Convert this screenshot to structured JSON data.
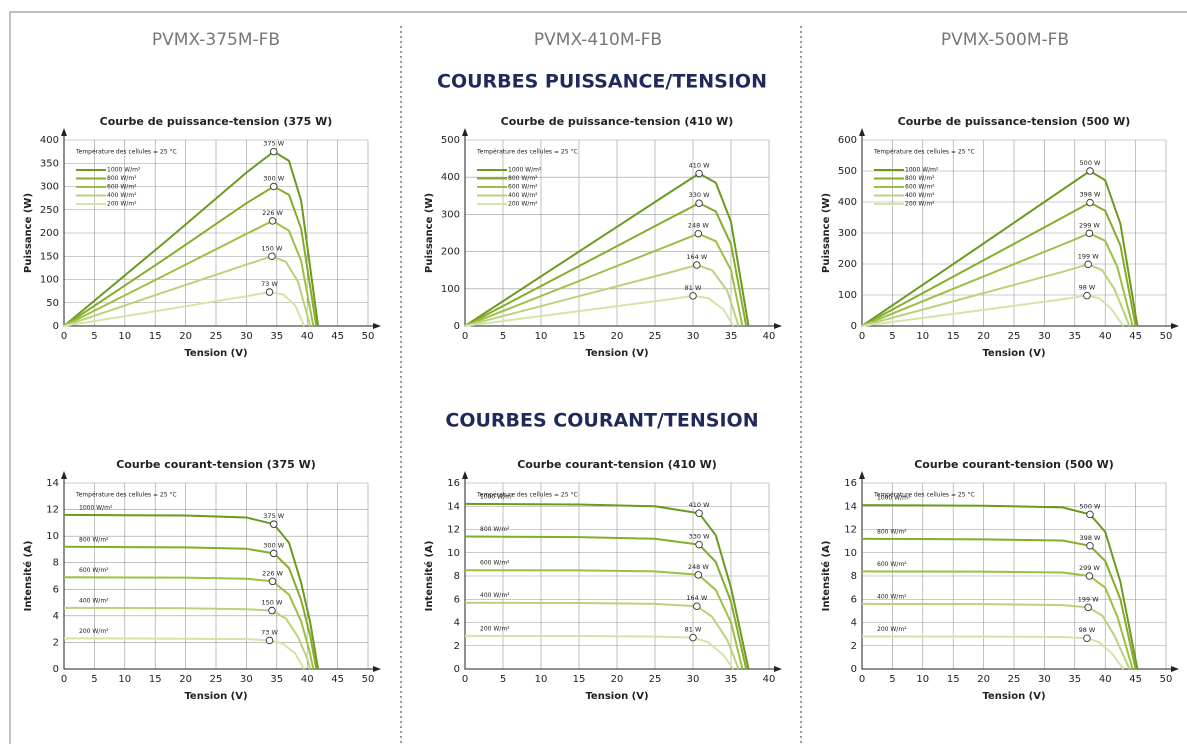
{
  "columns": [
    "PVMX-375M-FB",
    "PVMX-410M-FB",
    "PVMX-500M-FB"
  ],
  "sections": [
    "COURBES PUISSANCE/TENSION",
    "COURBES COURANT/TENSION"
  ],
  "chart_data": [
    {
      "type": "line",
      "title": "Courbe de puissance-tension (375 W)",
      "xlabel": "Tension (V)",
      "ylabel": "Puissance (W)",
      "annotation": "Température des cellules = 25 °C",
      "legend": "upper left",
      "grid": true,
      "xlim": [
        0,
        50
      ],
      "xticks": [
        0,
        5,
        10,
        15,
        20,
        25,
        30,
        35,
        40,
        45,
        50
      ],
      "ylim": [
        0,
        400
      ],
      "yticks": [
        0,
        50,
        100,
        150,
        200,
        250,
        300,
        350,
        400
      ],
      "series": [
        {
          "name": "1000 W/m²",
          "color": "#6a9a1f",
          "x": [
            0,
            17,
            30,
            34.5,
            37,
            39,
            41.8
          ],
          "values": [
            0,
            185,
            330,
            375,
            355,
            270,
            0
          ],
          "peak": {
            "x": 34.5,
            "y": 375,
            "label": "375 W"
          }
        },
        {
          "name": "800 W/m²",
          "color": "#84ad2a",
          "x": [
            0,
            17,
            30,
            34.5,
            37,
            39,
            41.5
          ],
          "values": [
            0,
            148,
            264,
            300,
            282,
            210,
            0
          ],
          "peak": {
            "x": 34.5,
            "y": 300,
            "label": "300 W"
          }
        },
        {
          "name": "600 W/m²",
          "color": "#9cc043",
          "x": [
            0,
            17,
            30,
            34.3,
            37,
            39,
            41
          ],
          "values": [
            0,
            112,
            198,
            226,
            205,
            140,
            0
          ],
          "peak": {
            "x": 34.3,
            "y": 226,
            "label": "226 W"
          }
        },
        {
          "name": "400 W/m²",
          "color": "#b9d37a",
          "x": [
            0,
            17,
            30,
            34.2,
            36.5,
            38.5,
            40.5
          ],
          "values": [
            0,
            75,
            132,
            150,
            138,
            95,
            0
          ],
          "peak": {
            "x": 34.2,
            "y": 150,
            "label": "150 W"
          }
        },
        {
          "name": "200 W/m²",
          "color": "#d4e4a8",
          "x": [
            0,
            17,
            30,
            33.8,
            36,
            38,
            39.5
          ],
          "values": [
            0,
            36,
            64,
            73,
            68,
            45,
            0
          ],
          "peak": {
            "x": 33.8,
            "y": 73,
            "label": "73 W"
          }
        }
      ]
    },
    {
      "type": "line",
      "title": "Courbe de puissance-tension (410 W)",
      "xlabel": "Tension (V)",
      "ylabel": "Puissance (W)",
      "annotation": "Température des cellules = 25 °C",
      "legend": "upper left",
      "grid": true,
      "xlim": [
        0,
        40
      ],
      "xticks": [
        0,
        5,
        10,
        15,
        20,
        25,
        30,
        35,
        40
      ],
      "ylim": [
        0,
        500
      ],
      "yticks": [
        0,
        100,
        200,
        300,
        400,
        500
      ],
      "series": [
        {
          "name": "1000 W/m²",
          "color": "#6a9a1f",
          "x": [
            0,
            15,
            27,
            30.8,
            33,
            35,
            37.3
          ],
          "values": [
            0,
            200,
            360,
            410,
            385,
            280,
            0
          ],
          "peak": {
            "x": 30.8,
            "y": 410,
            "label": "410 W"
          }
        },
        {
          "name": "800 W/m²",
          "color": "#84ad2a",
          "x": [
            0,
            15,
            27,
            30.8,
            33,
            35,
            37
          ],
          "values": [
            0,
            161,
            290,
            330,
            308,
            220,
            0
          ],
          "peak": {
            "x": 30.8,
            "y": 330,
            "label": "330 W"
          }
        },
        {
          "name": "600 W/m²",
          "color": "#9cc043",
          "x": [
            0,
            15,
            27,
            30.7,
            33,
            35,
            36.5
          ],
          "values": [
            0,
            121,
            218,
            248,
            228,
            150,
            0
          ],
          "peak": {
            "x": 30.7,
            "y": 248,
            "label": "248 W"
          }
        },
        {
          "name": "400 W/m²",
          "color": "#b9d37a",
          "x": [
            0,
            15,
            27,
            30.5,
            32.5,
            34.5,
            36
          ],
          "values": [
            0,
            80,
            144,
            164,
            150,
            95,
            0
          ],
          "peak": {
            "x": 30.5,
            "y": 164,
            "label": "164 W"
          }
        },
        {
          "name": "200 W/m²",
          "color": "#d4e4a8",
          "x": [
            0,
            15,
            27,
            30,
            32,
            34,
            35.3
          ],
          "values": [
            0,
            40,
            72,
            81,
            75,
            45,
            0
          ],
          "peak": {
            "x": 30,
            "y": 81,
            "label": "81 W"
          }
        }
      ]
    },
    {
      "type": "line",
      "title": "Courbe de puissance-tension (500 W)",
      "xlabel": "Tension (V)",
      "ylabel": "Puissance (W)",
      "annotation": "Température des cellules = 25 °C",
      "legend": "upper left",
      "grid": true,
      "xlim": [
        0,
        50
      ],
      "xticks": [
        0,
        5,
        10,
        15,
        20,
        25,
        30,
        35,
        40,
        45,
        50
      ],
      "ylim": [
        0,
        600
      ],
      "yticks": [
        0,
        100,
        200,
        300,
        400,
        500,
        600
      ],
      "series": [
        {
          "name": "1000 W/m²",
          "color": "#6a9a1f",
          "x": [
            0,
            20,
            33,
            37.5,
            40,
            42.5,
            45.3
          ],
          "values": [
            0,
            266,
            440,
            500,
            470,
            330,
            0
          ],
          "peak": {
            "x": 37.5,
            "y": 500,
            "label": "500 W"
          }
        },
        {
          "name": "800 W/m²",
          "color": "#84ad2a",
          "x": [
            0,
            20,
            33,
            37.5,
            40,
            42.5,
            45
          ],
          "values": [
            0,
            212,
            350,
            398,
            372,
            260,
            0
          ],
          "peak": {
            "x": 37.5,
            "y": 398,
            "label": "398 W"
          }
        },
        {
          "name": "600 W/m²",
          "color": "#9cc043",
          "x": [
            0,
            20,
            33,
            37.4,
            40,
            42,
            44.5
          ],
          "values": [
            0,
            160,
            263,
            299,
            275,
            190,
            0
          ],
          "peak": {
            "x": 37.4,
            "y": 299,
            "label": "299 W"
          }
        },
        {
          "name": "400 W/m²",
          "color": "#b9d37a",
          "x": [
            0,
            20,
            33,
            37.2,
            39.5,
            41.5,
            44
          ],
          "values": [
            0,
            106,
            175,
            199,
            180,
            120,
            0
          ],
          "peak": {
            "x": 37.2,
            "y": 199,
            "label": "199 W"
          }
        },
        {
          "name": "200 W/m²",
          "color": "#d4e4a8",
          "x": [
            0,
            20,
            33,
            37,
            39,
            41,
            43
          ],
          "values": [
            0,
            52,
            86,
            98,
            90,
            55,
            0
          ],
          "peak": {
            "x": 37,
            "y": 98,
            "label": "98 W"
          }
        }
      ]
    },
    {
      "type": "line",
      "title": "Courbe courant-tension (375 W)",
      "xlabel": "Tension (V)",
      "ylabel": "Intensité (A)",
      "annotation": "Température des cellules = 25 °C",
      "legend": "on lines",
      "grid": true,
      "xlim": [
        0,
        50
      ],
      "xticks": [
        0,
        5,
        10,
        15,
        20,
        25,
        30,
        35,
        40,
        45,
        50
      ],
      "ylim": [
        0,
        14
      ],
      "yticks": [
        0,
        2,
        4,
        6,
        8,
        10,
        12,
        14
      ],
      "series": [
        {
          "name": "1000 W/m²",
          "color": "#6a9a1f",
          "x": [
            0,
            20,
            30,
            34.5,
            37,
            39,
            40.5,
            41.8
          ],
          "values": [
            11.6,
            11.55,
            11.4,
            10.9,
            9.5,
            6.5,
            3.5,
            0
          ],
          "peak": {
            "x": 34.5,
            "y": 10.9,
            "label": "375 W"
          }
        },
        {
          "name": "800 W/m²",
          "color": "#84ad2a",
          "x": [
            0,
            20,
            30,
            34.5,
            37,
            39,
            40.5,
            41.5
          ],
          "values": [
            9.2,
            9.15,
            9.05,
            8.7,
            7.6,
            5.2,
            2.5,
            0
          ],
          "peak": {
            "x": 34.5,
            "y": 8.7,
            "label": "300 W"
          }
        },
        {
          "name": "600 W/m²",
          "color": "#9cc043",
          "x": [
            0,
            20,
            30,
            34.3,
            37,
            39,
            40.3,
            41
          ],
          "values": [
            6.9,
            6.88,
            6.8,
            6.6,
            5.6,
            3.6,
            1.5,
            0
          ],
          "peak": {
            "x": 34.3,
            "y": 6.6,
            "label": "226 W"
          }
        },
        {
          "name": "400 W/m²",
          "color": "#b9d37a",
          "x": [
            0,
            20,
            30,
            34.2,
            36.5,
            38.5,
            40,
            40.5
          ],
          "values": [
            4.6,
            4.58,
            4.5,
            4.4,
            3.8,
            2.4,
            0.8,
            0
          ],
          "peak": {
            "x": 34.2,
            "y": 4.4,
            "label": "150 W"
          }
        },
        {
          "name": "200 W/m²",
          "color": "#d4e4a8",
          "x": [
            0,
            20,
            30,
            33.8,
            36,
            38,
            39,
            39.5
          ],
          "values": [
            2.3,
            2.28,
            2.25,
            2.15,
            1.9,
            1.2,
            0.4,
            0
          ],
          "peak": {
            "x": 33.8,
            "y": 2.15,
            "label": "73 W"
          }
        }
      ]
    },
    {
      "type": "line",
      "title": "Courbe courant-tension (410 W)",
      "xlabel": "Tension (V)",
      "ylabel": "Intensité (A)",
      "annotation": "Température des cellules = 25 °C",
      "legend": "on lines",
      "grid": true,
      "xlim": [
        0,
        40
      ],
      "xticks": [
        0,
        5,
        10,
        15,
        20,
        25,
        30,
        35,
        40
      ],
      "ylim": [
        0,
        16
      ],
      "yticks": [
        0,
        2,
        4,
        6,
        8,
        10,
        12,
        14,
        16
      ],
      "series": [
        {
          "name": "1000 W/m²",
          "color": "#6a9a1f",
          "x": [
            0,
            15,
            25,
            30.8,
            33,
            35,
            37.3
          ],
          "values": [
            14.2,
            14.15,
            14,
            13.4,
            11.5,
            7,
            0
          ],
          "peak": {
            "x": 30.8,
            "y": 13.4,
            "label": "410 W"
          }
        },
        {
          "name": "800 W/m²",
          "color": "#84ad2a",
          "x": [
            0,
            15,
            25,
            30.8,
            33,
            35,
            37
          ],
          "values": [
            11.4,
            11.35,
            11.2,
            10.7,
            9.2,
            5.8,
            0
          ],
          "peak": {
            "x": 30.8,
            "y": 10.7,
            "label": "330 W"
          }
        },
        {
          "name": "600 W/m²",
          "color": "#9cc043",
          "x": [
            0,
            15,
            25,
            30.7,
            33,
            35,
            36.5
          ],
          "values": [
            8.5,
            8.48,
            8.4,
            8.1,
            6.8,
            4,
            0
          ],
          "peak": {
            "x": 30.7,
            "y": 8.1,
            "label": "248 W"
          }
        },
        {
          "name": "400 W/m²",
          "color": "#b9d37a",
          "x": [
            0,
            15,
            25,
            30.5,
            32.5,
            34.5,
            36
          ],
          "values": [
            5.7,
            5.68,
            5.6,
            5.4,
            4.5,
            2.5,
            0
          ],
          "peak": {
            "x": 30.5,
            "y": 5.4,
            "label": "164 W"
          }
        },
        {
          "name": "200 W/m²",
          "color": "#d4e4a8",
          "x": [
            0,
            15,
            25,
            30,
            32,
            34,
            35.3
          ],
          "values": [
            2.85,
            2.84,
            2.8,
            2.7,
            2.3,
            1.2,
            0
          ],
          "peak": {
            "x": 30,
            "y": 2.7,
            "label": "81 W"
          }
        }
      ]
    },
    {
      "type": "line",
      "title": "Courbe courant-tension (500 W)",
      "xlabel": "Tension (V)",
      "ylabel": "Intensité (A)",
      "annotation": "Température des cellules = 25 °C",
      "legend": "on lines",
      "grid": true,
      "xlim": [
        0,
        50
      ],
      "xticks": [
        0,
        5,
        10,
        15,
        20,
        25,
        30,
        35,
        40,
        45,
        50
      ],
      "ylim": [
        0,
        16
      ],
      "yticks": [
        0,
        2,
        4,
        6,
        8,
        10,
        12,
        14,
        16
      ],
      "series": [
        {
          "name": "1000 W/m²",
          "color": "#6a9a1f",
          "x": [
            0,
            20,
            33,
            37.5,
            40,
            42.5,
            45.3
          ],
          "values": [
            14.1,
            14.05,
            13.9,
            13.3,
            11.8,
            7.5,
            0
          ],
          "peak": {
            "x": 37.5,
            "y": 13.3,
            "label": "500 W"
          }
        },
        {
          "name": "800 W/m²",
          "color": "#84ad2a",
          "x": [
            0,
            20,
            33,
            37.5,
            40,
            42.5,
            45
          ],
          "values": [
            11.2,
            11.15,
            11.05,
            10.6,
            9.3,
            6,
            0
          ],
          "peak": {
            "x": 37.5,
            "y": 10.6,
            "label": "398 W"
          }
        },
        {
          "name": "600 W/m²",
          "color": "#9cc043",
          "x": [
            0,
            20,
            33,
            37.4,
            40,
            42,
            44.5
          ],
          "values": [
            8.4,
            8.38,
            8.3,
            8,
            7,
            4.5,
            0
          ],
          "peak": {
            "x": 37.4,
            "y": 8,
            "label": "299 W"
          }
        },
        {
          "name": "400 W/m²",
          "color": "#b9d37a",
          "x": [
            0,
            20,
            33,
            37.2,
            39.5,
            41.5,
            44
          ],
          "values": [
            5.6,
            5.58,
            5.5,
            5.3,
            4.6,
            2.9,
            0
          ],
          "peak": {
            "x": 37.2,
            "y": 5.3,
            "label": "199 W"
          }
        },
        {
          "name": "200 W/m²",
          "color": "#d4e4a8",
          "x": [
            0,
            20,
            33,
            37,
            39,
            41,
            43
          ],
          "values": [
            2.8,
            2.79,
            2.75,
            2.65,
            2.3,
            1.4,
            0
          ],
          "peak": {
            "x": 37,
            "y": 2.65,
            "label": "98 W"
          }
        }
      ]
    }
  ]
}
